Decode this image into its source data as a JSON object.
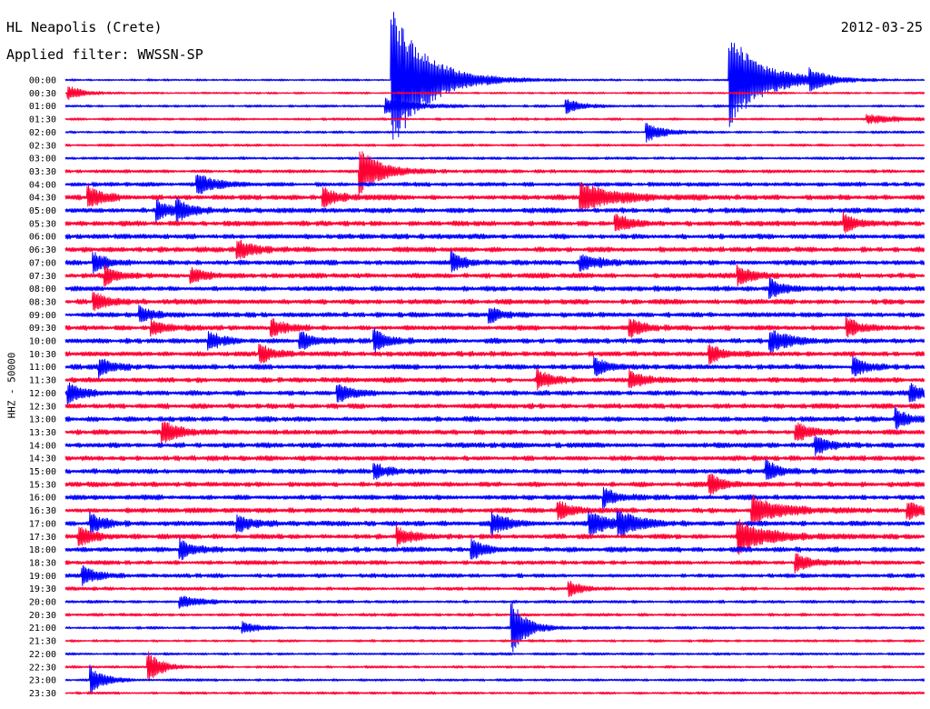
{
  "header": {
    "station": "HL Neapolis (Crete)",
    "filter": "Applied filter: WWSSN-SP",
    "date": "2012-03-25",
    "channel_label": "HHZ - 50000"
  },
  "chart_data": {
    "type": "line",
    "title": "HL Neapolis (Crete)",
    "subtitle": "Applied filter: WWSSN-SP",
    "date": "2012-03-25",
    "ylabel": "HHZ - 50000",
    "x_span_minutes": 30,
    "series_colors": [
      "#0000ff",
      "#ff0033"
    ],
    "rows": [
      "00:00",
      "00:30",
      "01:00",
      "01:30",
      "02:00",
      "02:30",
      "03:00",
      "03:30",
      "04:00",
      "04:30",
      "05:00",
      "05:30",
      "06:00",
      "06:30",
      "07:00",
      "07:30",
      "08:00",
      "08:30",
      "09:00",
      "09:30",
      "10:00",
      "10:30",
      "11:00",
      "11:30",
      "12:00",
      "12:30",
      "13:00",
      "13:30",
      "14:00",
      "14:30",
      "15:00",
      "15:30",
      "16:00",
      "16:30",
      "17:00",
      "17:30",
      "18:00",
      "18:30",
      "19:00",
      "19:30",
      "20:00",
      "20:30",
      "21:00",
      "21:30",
      "22:00",
      "22:30",
      "23:00",
      "23:30"
    ],
    "noise_level": [
      1.2,
      1.2,
      1.5,
      1.5,
      1.5,
      1.5,
      1.6,
      2,
      2.5,
      3,
      3,
      3,
      3,
      3,
      3,
      3,
      3,
      3,
      3,
      3,
      3,
      3,
      3,
      3,
      3,
      3,
      3,
      3,
      3,
      3,
      3,
      3,
      3,
      3,
      3,
      3,
      3,
      2.5,
      2.5,
      2,
      1.8,
      1.8,
      1.8,
      1.5,
      1.5,
      1.5,
      1.5,
      1.5
    ],
    "events": [
      {
        "row": 0,
        "minute": 11.4,
        "amp": 80,
        "dur": 2.5
      },
      {
        "row": 0,
        "minute": 23.2,
        "amp": 50,
        "dur": 2.5
      },
      {
        "row": 0,
        "minute": 26,
        "amp": 10,
        "dur": 1
      },
      {
        "row": 1,
        "minute": 0.1,
        "amp": 8,
        "dur": 1
      },
      {
        "row": 2,
        "minute": 11.2,
        "amp": 8,
        "dur": 2
      },
      {
        "row": 2,
        "minute": 17.5,
        "amp": 7,
        "dur": 1
      },
      {
        "row": 3,
        "minute": 28,
        "amp": 5,
        "dur": 2
      },
      {
        "row": 4,
        "minute": 20.3,
        "amp": 10,
        "dur": 1.2
      },
      {
        "row": 7,
        "minute": 10.3,
        "amp": 25,
        "dur": 1.5
      },
      {
        "row": 8,
        "minute": 4.6,
        "amp": 12,
        "dur": 1.2
      },
      {
        "row": 9,
        "minute": 0.8,
        "amp": 12,
        "dur": 1
      },
      {
        "row": 9,
        "minute": 9,
        "amp": 10,
        "dur": 1
      },
      {
        "row": 9,
        "minute": 18,
        "amp": 15,
        "dur": 2.5
      },
      {
        "row": 10,
        "minute": 3.2,
        "amp": 10,
        "dur": 1
      },
      {
        "row": 10,
        "minute": 3.9,
        "amp": 10,
        "dur": 1
      },
      {
        "row": 11,
        "minute": 19.2,
        "amp": 10,
        "dur": 1
      },
      {
        "row": 11,
        "minute": 27.2,
        "amp": 10,
        "dur": 1
      },
      {
        "row": 13,
        "minute": 6,
        "amp": 10,
        "dur": 1.2
      },
      {
        "row": 14,
        "minute": 1,
        "amp": 10,
        "dur": 1
      },
      {
        "row": 14,
        "minute": 13.5,
        "amp": 10,
        "dur": 1
      },
      {
        "row": 14,
        "minute": 18,
        "amp": 8,
        "dur": 1.5
      },
      {
        "row": 15,
        "minute": 1.4,
        "amp": 10,
        "dur": 1
      },
      {
        "row": 15,
        "minute": 4.4,
        "amp": 8,
        "dur": 1
      },
      {
        "row": 15,
        "minute": 23.5,
        "amp": 10,
        "dur": 1
      },
      {
        "row": 16,
        "minute": 24.6,
        "amp": 10,
        "dur": 1
      },
      {
        "row": 17,
        "minute": 1,
        "amp": 10,
        "dur": 1
      },
      {
        "row": 18,
        "minute": 2.6,
        "amp": 8,
        "dur": 1
      },
      {
        "row": 18,
        "minute": 14.8,
        "amp": 8,
        "dur": 1
      },
      {
        "row": 19,
        "minute": 3,
        "amp": 8,
        "dur": 1
      },
      {
        "row": 19,
        "minute": 7.2,
        "amp": 10,
        "dur": 1
      },
      {
        "row": 19,
        "minute": 19.7,
        "amp": 10,
        "dur": 1
      },
      {
        "row": 19,
        "minute": 27.3,
        "amp": 10,
        "dur": 1
      },
      {
        "row": 20,
        "minute": 5,
        "amp": 10,
        "dur": 1
      },
      {
        "row": 20,
        "minute": 8.2,
        "amp": 10,
        "dur": 1
      },
      {
        "row": 20,
        "minute": 10.8,
        "amp": 12,
        "dur": 1
      },
      {
        "row": 20,
        "minute": 24.6,
        "amp": 12,
        "dur": 1.5
      },
      {
        "row": 21,
        "minute": 6.8,
        "amp": 10,
        "dur": 1
      },
      {
        "row": 21,
        "minute": 22.5,
        "amp": 10,
        "dur": 1
      },
      {
        "row": 22,
        "minute": 1.2,
        "amp": 10,
        "dur": 1
      },
      {
        "row": 22,
        "minute": 18.5,
        "amp": 10,
        "dur": 1
      },
      {
        "row": 22,
        "minute": 27.5,
        "amp": 10,
        "dur": 1
      },
      {
        "row": 23,
        "minute": 16.5,
        "amp": 10,
        "dur": 1
      },
      {
        "row": 23,
        "minute": 19.7,
        "amp": 10,
        "dur": 1
      },
      {
        "row": 24,
        "minute": 0.1,
        "amp": 10,
        "dur": 1
      },
      {
        "row": 24,
        "minute": 9.5,
        "amp": 10,
        "dur": 1
      },
      {
        "row": 24,
        "minute": 29.5,
        "amp": 10,
        "dur": 1
      },
      {
        "row": 26,
        "minute": 29,
        "amp": 10,
        "dur": 1
      },
      {
        "row": 27,
        "minute": 3.4,
        "amp": 12,
        "dur": 1.2
      },
      {
        "row": 27,
        "minute": 25.5,
        "amp": 10,
        "dur": 1
      },
      {
        "row": 28,
        "minute": 26.2,
        "amp": 10,
        "dur": 1
      },
      {
        "row": 30,
        "minute": 10.8,
        "amp": 8,
        "dur": 1
      },
      {
        "row": 30,
        "minute": 24.5,
        "amp": 10,
        "dur": 1
      },
      {
        "row": 31,
        "minute": 22.5,
        "amp": 10,
        "dur": 1
      },
      {
        "row": 32,
        "minute": 18.8,
        "amp": 10,
        "dur": 1
      },
      {
        "row": 33,
        "minute": 17.2,
        "amp": 10,
        "dur": 1
      },
      {
        "row": 33,
        "minute": 24,
        "amp": 16,
        "dur": 2
      },
      {
        "row": 33,
        "minute": 29.4,
        "amp": 10,
        "dur": 1
      },
      {
        "row": 34,
        "minute": 0.9,
        "amp": 10,
        "dur": 1
      },
      {
        "row": 34,
        "minute": 6,
        "amp": 10,
        "dur": 1
      },
      {
        "row": 34,
        "minute": 14.9,
        "amp": 12,
        "dur": 1.2
      },
      {
        "row": 34,
        "minute": 18.3,
        "amp": 12,
        "dur": 1.5
      },
      {
        "row": 34,
        "minute": 19.3,
        "amp": 12,
        "dur": 1.5
      },
      {
        "row": 35,
        "minute": 0.5,
        "amp": 10,
        "dur": 1
      },
      {
        "row": 35,
        "minute": 11.6,
        "amp": 10,
        "dur": 1
      },
      {
        "row": 35,
        "minute": 23.5,
        "amp": 18,
        "dur": 2
      },
      {
        "row": 36,
        "minute": 4,
        "amp": 10,
        "dur": 1
      },
      {
        "row": 36,
        "minute": 14.2,
        "amp": 10,
        "dur": 1
      },
      {
        "row": 37,
        "minute": 25.5,
        "amp": 10,
        "dur": 1
      },
      {
        "row": 38,
        "minute": 0.6,
        "amp": 10,
        "dur": 1
      },
      {
        "row": 39,
        "minute": 17.6,
        "amp": 8,
        "dur": 1
      },
      {
        "row": 40,
        "minute": 4,
        "amp": 6,
        "dur": 1.5
      },
      {
        "row": 42,
        "minute": 6.2,
        "amp": 6,
        "dur": 1
      },
      {
        "row": 42,
        "minute": 15.6,
        "amp": 30,
        "dur": 1
      },
      {
        "row": 45,
        "minute": 2.9,
        "amp": 16,
        "dur": 1
      },
      {
        "row": 46,
        "minute": 0.9,
        "amp": 14,
        "dur": 1
      }
    ]
  }
}
